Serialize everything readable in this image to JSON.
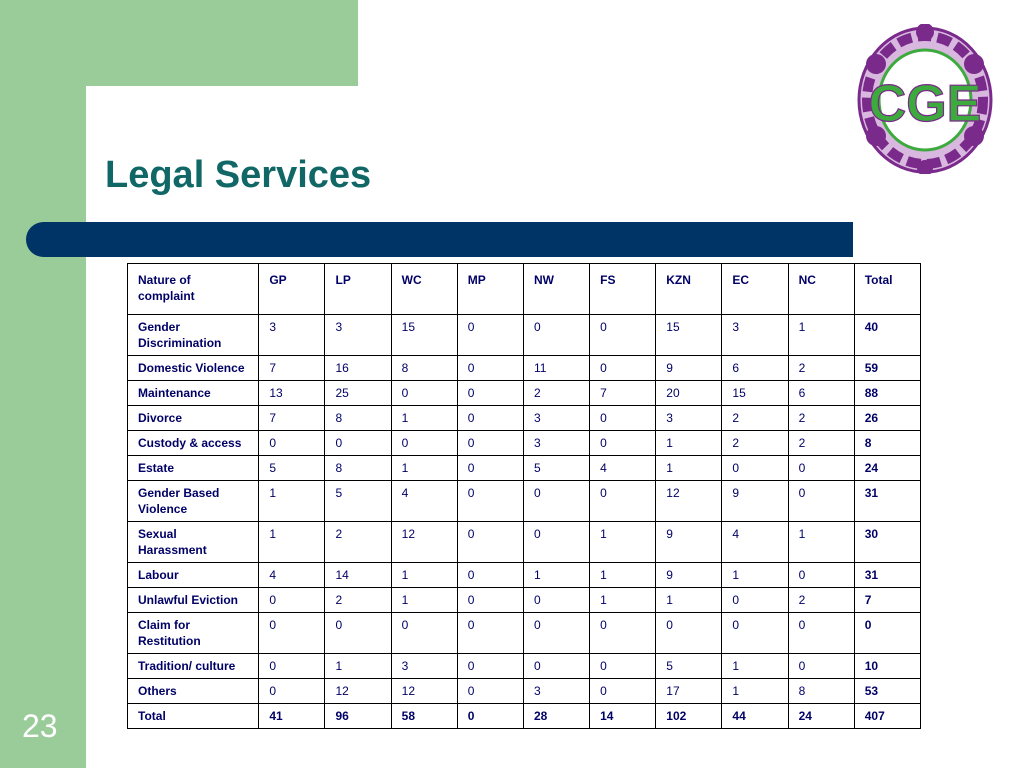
{
  "slide": {
    "title": "Legal Services",
    "page_number": "23"
  },
  "logo": {
    "text": "CGE",
    "icon": "commission-for-gender-equality-logo"
  },
  "colors": {
    "accent_green": "#99cc99",
    "title_teal": "#116666",
    "bar_navy": "#003366",
    "logo_purple": "#7a2a8a",
    "logo_green": "#3caa3c"
  },
  "table": {
    "headers": [
      "Nature of complaint",
      "GP",
      "LP",
      "WC",
      "MP",
      "NW",
      "FS",
      "KZN",
      "EC",
      "NC",
      "Total"
    ],
    "rows": [
      {
        "label": "Gender Discrimination",
        "values": [
          "3",
          "3",
          "15",
          "0",
          "0",
          "0",
          "15",
          "3",
          "1"
        ],
        "total": "40"
      },
      {
        "label": "Domestic Violence",
        "values": [
          "7",
          "16",
          "8",
          "0",
          "11",
          "0",
          "9",
          "6",
          "2"
        ],
        "total": "59"
      },
      {
        "label": "Maintenance",
        "values": [
          "13",
          "25",
          "0",
          "0",
          "2",
          "7",
          "20",
          "15",
          "6"
        ],
        "total": "88"
      },
      {
        "label": "Divorce",
        "values": [
          "7",
          "8",
          "1",
          "0",
          "3",
          "0",
          "3",
          "2",
          "2"
        ],
        "total": "26"
      },
      {
        "label": "Custody & access",
        "values": [
          "0",
          "0",
          "0",
          "0",
          "3",
          "0",
          "1",
          "2",
          "2"
        ],
        "total": "8"
      },
      {
        "label": "Estate",
        "values": [
          "5",
          "8",
          "1",
          "0",
          "5",
          "4",
          "1",
          "0",
          "0"
        ],
        "total": "24"
      },
      {
        "label": "Gender Based Violence",
        "values": [
          "1",
          "5",
          "4",
          "0",
          "0",
          "0",
          "12",
          "9",
          "0"
        ],
        "total": "31"
      },
      {
        "label": "Sexual Harassment",
        "values": [
          "1",
          "2",
          "12",
          "0",
          "0",
          "1",
          "9",
          "4",
          "1"
        ],
        "total": "30"
      },
      {
        "label": "Labour",
        "values": [
          "4",
          "14",
          "1",
          "0",
          "1",
          "1",
          "9",
          "1",
          "0"
        ],
        "total": "31"
      },
      {
        "label": "Unlawful Eviction",
        "values": [
          "0",
          "2",
          "1",
          "0",
          "0",
          "1",
          "1",
          "0",
          "2"
        ],
        "total": "7"
      },
      {
        "label": "Claim for Restitution",
        "values": [
          "0",
          "0",
          "0",
          "0",
          "0",
          "0",
          "0",
          "0",
          "0"
        ],
        "total": "0"
      },
      {
        "label": "Tradition/ culture",
        "values": [
          "0",
          "1",
          "3",
          "0",
          "0",
          "0",
          "5",
          "1",
          "0"
        ],
        "total": "10"
      },
      {
        "label": "Others",
        "values": [
          "0",
          "12",
          "12",
          "0",
          "3",
          "0",
          "17",
          "1",
          "8"
        ],
        "total": "53"
      }
    ],
    "total_row": {
      "label": "Total",
      "values": [
        "41",
        "96",
        "58",
        "0",
        "28",
        "14",
        "102",
        "44",
        "24"
      ],
      "total": "407"
    }
  }
}
